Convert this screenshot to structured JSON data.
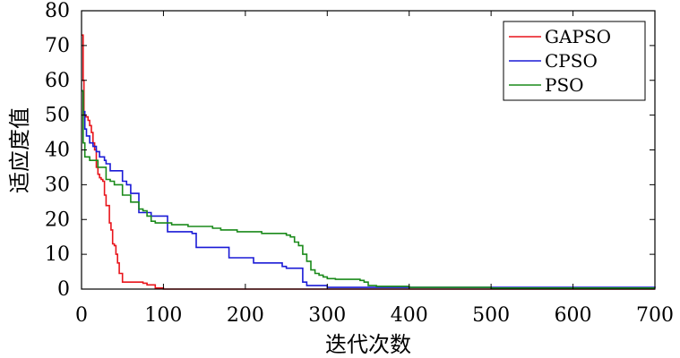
{
  "chart_data": {
    "type": "line",
    "title": "",
    "xlabel": "迭代次数",
    "ylabel": "适应度值",
    "xlim": [
      0,
      700
    ],
    "ylim": [
      0,
      80
    ],
    "xticks": [
      0,
      100,
      200,
      300,
      400,
      500,
      600,
      700
    ],
    "yticks": [
      0,
      10,
      20,
      30,
      40,
      50,
      60,
      70,
      80
    ],
    "grid": false,
    "legend": "top-right",
    "series": [
      {
        "name": "GAPSO",
        "color": "#e8141b",
        "x": [
          0,
          2,
          3,
          5,
          8,
          10,
          12,
          14,
          16,
          18,
          20,
          22,
          24,
          26,
          28,
          30,
          34,
          36,
          38,
          40,
          42,
          44,
          46,
          50,
          70,
          75,
          80,
          90,
          100,
          700
        ],
        "y": [
          73,
          60,
          50,
          49.5,
          48.5,
          47,
          45,
          42,
          40,
          35,
          33,
          32,
          31.5,
          31,
          27,
          24,
          19,
          17,
          13,
          12.5,
          10,
          7.5,
          4.5,
          2,
          2,
          1.7,
          1.2,
          0.3,
          0,
          0
        ]
      },
      {
        "name": "CPSO",
        "color": "#1a1ad6",
        "x": [
          0,
          2,
          4,
          6,
          10,
          14,
          18,
          22,
          25,
          28,
          30,
          35,
          40,
          45,
          50,
          55,
          60,
          68,
          70,
          75,
          85,
          100,
          105,
          135,
          140,
          175,
          180,
          210,
          240,
          245,
          250,
          270,
          275,
          300,
          700
        ],
        "y": [
          57,
          51,
          46,
          44,
          42,
          41,
          39.5,
          38,
          38,
          37,
          36,
          34,
          34,
          34,
          31,
          30,
          27.5,
          27.5,
          22,
          22,
          21,
          21,
          16.5,
          16,
          12,
          12,
          9,
          7.5,
          7.5,
          6.5,
          6,
          2,
          1,
          0.5,
          0.3
        ]
      },
      {
        "name": "PSO",
        "color": "#1a8a1a",
        "x": [
          0,
          2,
          4,
          10,
          20,
          30,
          35,
          40,
          50,
          60,
          70,
          75,
          80,
          85,
          90,
          100,
          110,
          120,
          130,
          140,
          150,
          160,
          170,
          180,
          190,
          200,
          210,
          220,
          230,
          240,
          245,
          250,
          255,
          260,
          265,
          270,
          275,
          280,
          285,
          290,
          295,
          300,
          310,
          340,
          345,
          350,
          360,
          400,
          500,
          700
        ],
        "y": [
          57,
          42,
          38,
          37,
          35,
          31.5,
          31,
          30,
          27,
          25,
          23,
          22.5,
          21,
          19.5,
          19,
          19,
          18.5,
          18.5,
          18,
          18,
          18,
          17.5,
          17,
          17,
          16.5,
          16.5,
          16.5,
          16,
          16,
          16,
          16,
          15.5,
          15,
          13.5,
          12.5,
          10,
          8,
          5.5,
          4.5,
          4,
          3.5,
          3,
          2.8,
          2.5,
          2,
          1,
          0.8,
          0.5,
          0.3,
          0.3
        ]
      }
    ]
  }
}
